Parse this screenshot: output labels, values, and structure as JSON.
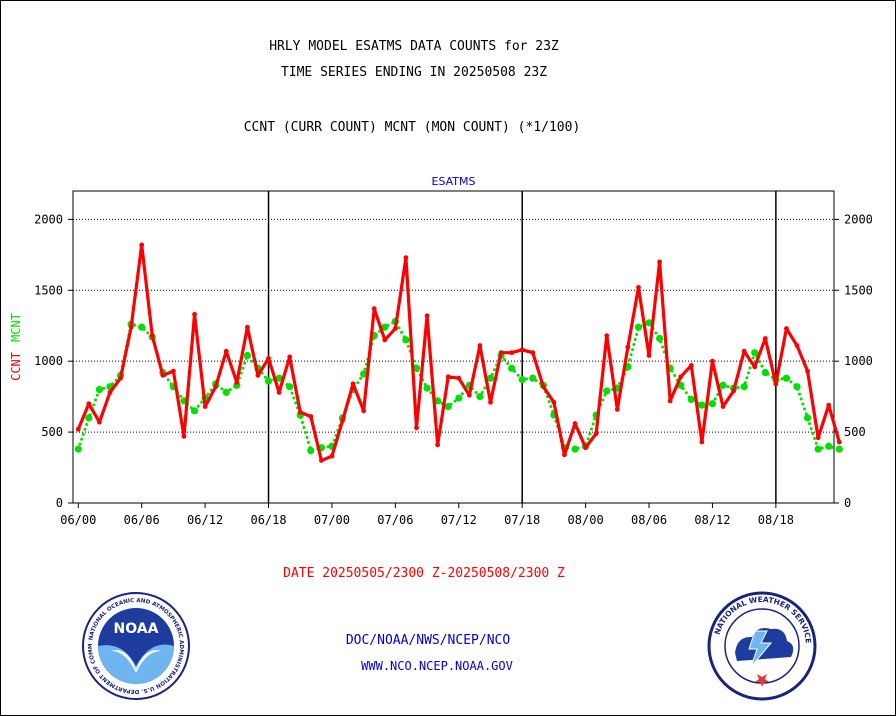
{
  "header": {
    "title_line1": "HRLY MODEL ESATMS DATA COUNTS for 23Z",
    "title_line2": "TIME SERIES ENDING IN 20250508 23Z",
    "subtitle": "CCNT (CURR COUNT) MCNT (MON COUNT) (*1/100)"
  },
  "colors": {
    "ccnt": "#ff0000",
    "mcnt": "#00e000",
    "text": "#000000",
    "panel_label": "#0000cc",
    "date_range": "#ff0000",
    "footer": "#0000cc"
  },
  "chart_data": {
    "type": "line",
    "panel_label": "ESATMS",
    "ylabel_series": [
      "CCNT",
      "MCNT"
    ],
    "ylim": [
      0,
      2200
    ],
    "yticks": [
      0,
      500,
      1000,
      1500,
      2000
    ],
    "xlim": [
      -0.5,
      71.5
    ],
    "xticks": [
      {
        "x": 0,
        "label": "06/00"
      },
      {
        "x": 6,
        "label": "06/06"
      },
      {
        "x": 12,
        "label": "06/12"
      },
      {
        "x": 18,
        "label": "06/18"
      },
      {
        "x": 24,
        "label": "07/00"
      },
      {
        "x": 30,
        "label": "07/06"
      },
      {
        "x": 36,
        "label": "07/12"
      },
      {
        "x": 42,
        "label": "07/18"
      },
      {
        "x": 48,
        "label": "08/00"
      },
      {
        "x": 54,
        "label": "08/06"
      },
      {
        "x": 60,
        "label": "08/12"
      },
      {
        "x": 66,
        "label": "08/18"
      }
    ],
    "day_boundaries": [
      18,
      42,
      66
    ],
    "grid": "horizontal dotted at y ticks",
    "series": [
      {
        "name": "CCNT",
        "style": "solid",
        "values": [
          520,
          700,
          570,
          780,
          880,
          1240,
          1820,
          1180,
          900,
          930,
          470,
          1330,
          680,
          820,
          1070,
          850,
          1240,
          900,
          1020,
          780,
          1030,
          640,
          610,
          300,
          330,
          580,
          840,
          650,
          1370,
          1150,
          1230,
          1730,
          530,
          1320,
          410,
          890,
          880,
          760,
          1110,
          710,
          1060,
          1060,
          1080,
          1060,
          820,
          710,
          340,
          560,
          390,
          490,
          1180,
          660,
          1100,
          1520,
          1040,
          1700,
          720,
          890,
          970,
          430,
          1000,
          680,
          790,
          1070,
          960,
          1160,
          840,
          1230,
          1110,
          930,
          460,
          690,
          430
        ]
      },
      {
        "name": "MCNT",
        "style": "dotted",
        "values": [
          380,
          600,
          800,
          820,
          900,
          1260,
          1240,
          1170,
          920,
          820,
          720,
          650,
          740,
          840,
          780,
          830,
          1040,
          950,
          860,
          880,
          820,
          620,
          370,
          390,
          400,
          600,
          800,
          910,
          1180,
          1240,
          1280,
          1150,
          950,
          810,
          720,
          680,
          740,
          830,
          750,
          880,
          1040,
          950,
          870,
          880,
          830,
          620,
          390,
          380,
          400,
          620,
          790,
          810,
          960,
          1240,
          1270,
          1160,
          950,
          830,
          730,
          690,
          700,
          830,
          810,
          820,
          1060,
          920,
          870,
          880,
          820,
          600,
          380,
          400,
          380
        ]
      }
    ]
  },
  "date_range": "DATE 20250505/2300 Z-20250508/2300 Z",
  "footer": {
    "line1": "DOC/NOAA/NWS/NCEP/NCO",
    "line2": "WWW.NCO.NCEP.NOAA.GOV"
  },
  "logos": {
    "noaa": {
      "center_text": "NOAA",
      "ring_text": "NATIONAL OCEANIC AND ATMOSPHERIC ADMINISTRATION U.S. DEPARTMENT OF COMMERCE"
    },
    "nws": {
      "ring_text": "NATIONAL WEATHER SERVICE"
    }
  }
}
